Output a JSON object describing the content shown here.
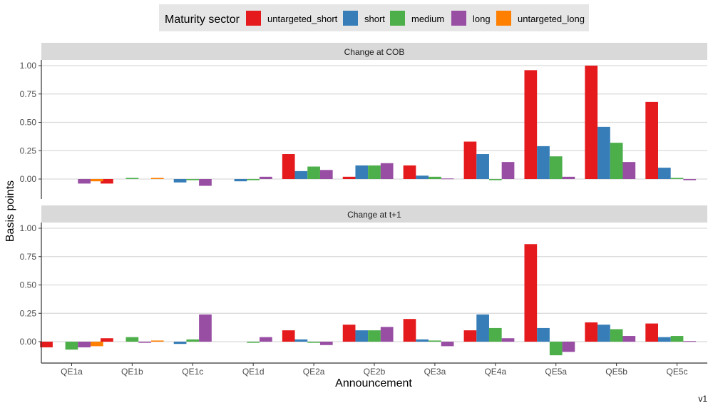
{
  "legend": {
    "title": "Maturity sector"
  },
  "axes": {
    "xlabel": "Announcement",
    "ylabel": "Basis points"
  },
  "caption": "v1",
  "colors": {
    "untargeted_short": "#e41a1c",
    "short": "#377eb8",
    "medium": "#4daf4a",
    "long": "#984ea3",
    "untargeted_long": "#ff7f00"
  },
  "chart_data": [
    {
      "type": "bar",
      "title": "Change at COB",
      "categories": [
        "QE1a",
        "QE1b",
        "QE1c",
        "QE1d",
        "QE2a",
        "QE2b",
        "QE3a",
        "QE4a",
        "QE5a",
        "QE5b",
        "QE5c"
      ],
      "ylim": [
        -0.08,
        1.05
      ],
      "yticks": [
        0.0,
        0.25,
        0.5,
        0.75,
        1.0
      ],
      "ytick_labels": [
        "0.00",
        "0.25",
        "0.50",
        "0.75",
        "1.00"
      ],
      "grid": true,
      "legend_position": "top",
      "series": [
        {
          "name": "untargeted_short",
          "values": [
            null,
            -0.04,
            null,
            null,
            0.22,
            0.02,
            0.12,
            0.33,
            0.96,
            1.0,
            0.68
          ]
        },
        {
          "name": "short",
          "values": [
            null,
            null,
            -0.03,
            -0.02,
            0.07,
            0.12,
            0.03,
            0.22,
            0.29,
            0.46,
            0.1
          ]
        },
        {
          "name": "medium",
          "values": [
            null,
            0.01,
            -0.01,
            -0.01,
            0.11,
            0.12,
            0.02,
            -0.01,
            0.2,
            0.32,
            0.01
          ]
        },
        {
          "name": "long",
          "values": [
            -0.04,
            null,
            -0.06,
            0.02,
            0.08,
            0.14,
            0.005,
            0.15,
            0.02,
            0.15,
            -0.01
          ]
        },
        {
          "name": "untargeted_long",
          "values": [
            -0.02,
            0.01,
            null,
            null,
            null,
            null,
            null,
            null,
            null,
            null,
            null
          ]
        }
      ]
    },
    {
      "type": "bar",
      "title": "Change at t+1",
      "categories": [
        "QE1a",
        "QE1b",
        "QE1c",
        "QE1d",
        "QE2a",
        "QE2b",
        "QE3a",
        "QE4a",
        "QE5a",
        "QE5b",
        "QE5c"
      ],
      "ylim": [
        -0.15,
        1.05
      ],
      "yticks": [
        0.0,
        0.25,
        0.5,
        0.75,
        1.0
      ],
      "ytick_labels": [
        "0.00",
        "0.25",
        "0.50",
        "0.75",
        "1.00"
      ],
      "grid": true,
      "series": [
        {
          "name": "untargeted_short",
          "values": [
            -0.05,
            0.03,
            null,
            null,
            0.1,
            0.15,
            0.2,
            0.1,
            0.86,
            0.17,
            0.16
          ]
        },
        {
          "name": "short",
          "values": [
            null,
            null,
            -0.02,
            null,
            0.02,
            0.1,
            0.02,
            0.24,
            0.12,
            0.15,
            0.04
          ]
        },
        {
          "name": "medium",
          "values": [
            -0.07,
            0.04,
            0.02,
            -0.01,
            -0.01,
            0.1,
            0.01,
            0.12,
            -0.12,
            0.11,
            0.05
          ]
        },
        {
          "name": "long",
          "values": [
            -0.05,
            -0.01,
            0.24,
            0.04,
            -0.03,
            0.13,
            -0.04,
            0.03,
            -0.09,
            0.05,
            0.005
          ]
        },
        {
          "name": "untargeted_long",
          "values": [
            -0.04,
            0.01,
            null,
            null,
            null,
            null,
            null,
            null,
            null,
            null,
            null
          ]
        }
      ]
    }
  ]
}
